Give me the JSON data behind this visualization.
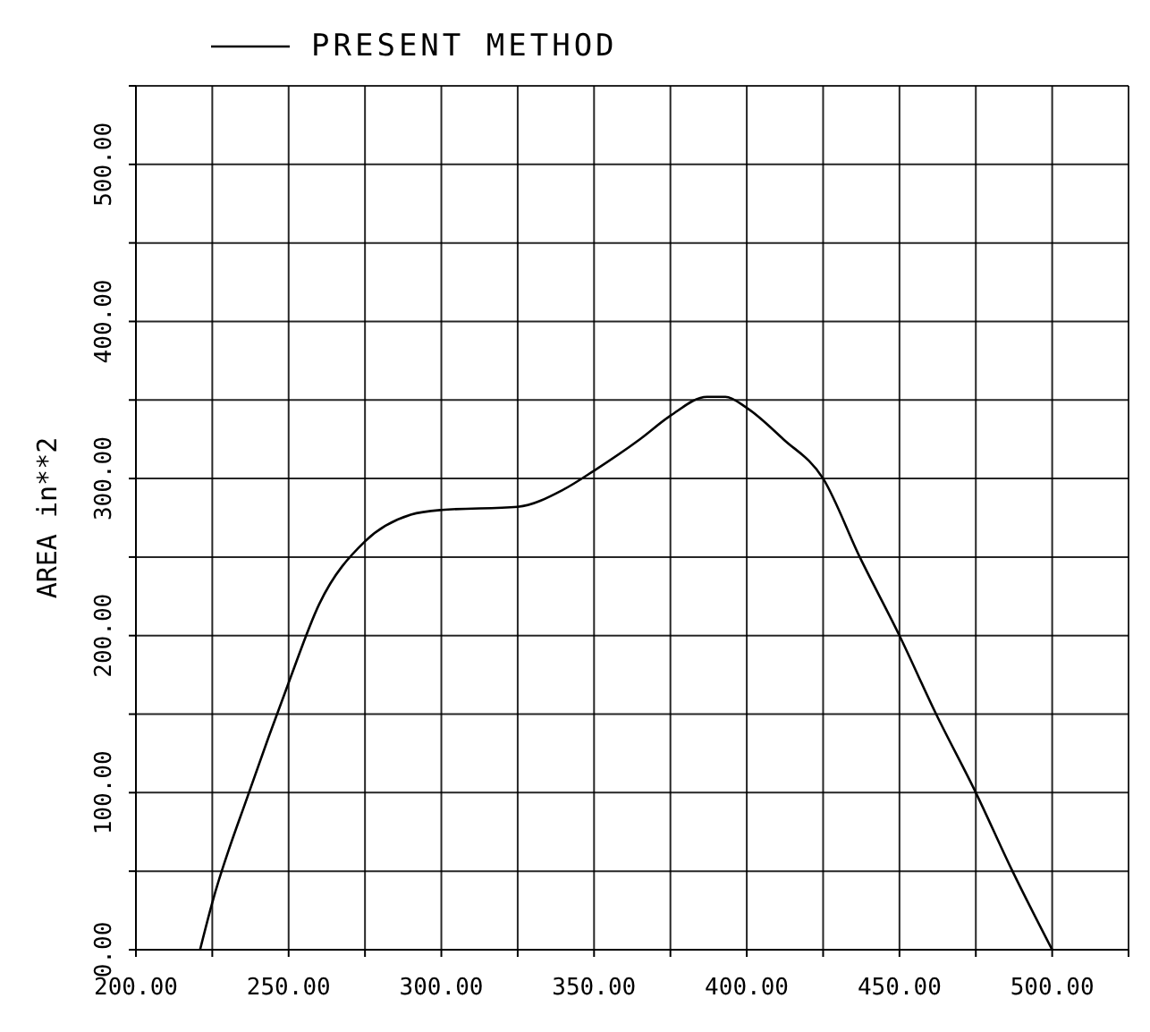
{
  "chart_data": {
    "type": "line",
    "ylabel": "AREA  in**2",
    "series": [
      {
        "name": "PRESENT METHOD",
        "color": "#000000",
        "x": [
          221,
          225,
          237,
          250,
          260,
          275,
          290,
          300,
          325,
          340,
          350,
          365,
          375,
          387,
          393,
          400,
          412,
          425,
          437,
          450,
          462,
          475,
          487,
          500
        ],
        "values": [
          0,
          30,
          100,
          170,
          220,
          260,
          277,
          280,
          282,
          293,
          305,
          325,
          340,
          352,
          352,
          345,
          325,
          300,
          250,
          200,
          150,
          100,
          50,
          0
        ]
      }
    ],
    "xlim": [
      200,
      525
    ],
    "ylim": [
      0,
      550
    ],
    "xticks": [
      {
        "value": 200,
        "label": "200.00"
      },
      {
        "value": 225,
        "label": null
      },
      {
        "value": 250,
        "label": "250.00"
      },
      {
        "value": 275,
        "label": null
      },
      {
        "value": 300,
        "label": "300.00"
      },
      {
        "value": 325,
        "label": null
      },
      {
        "value": 350,
        "label": "350.00"
      },
      {
        "value": 375,
        "label": null
      },
      {
        "value": 400,
        "label": "400.00"
      },
      {
        "value": 425,
        "label": null
      },
      {
        "value": 450,
        "label": "450.00"
      },
      {
        "value": 475,
        "label": null
      },
      {
        "value": 500,
        "label": "500.00"
      },
      {
        "value": 525,
        "label": null
      }
    ],
    "yticks": [
      {
        "value": 0,
        "label": "0.00"
      },
      {
        "value": 50,
        "label": null
      },
      {
        "value": 100,
        "label": "100.00"
      },
      {
        "value": 150,
        "label": null
      },
      {
        "value": 200,
        "label": "200.00"
      },
      {
        "value": 250,
        "label": null
      },
      {
        "value": 300,
        "label": "300.00"
      },
      {
        "value": 350,
        "label": null
      },
      {
        "value": 400,
        "label": "400.00"
      },
      {
        "value": 450,
        "label": null
      },
      {
        "value": 500,
        "label": "500.00"
      },
      {
        "value": 550,
        "label": null
      }
    ],
    "grid": true,
    "legend": "top left",
    "marker": "none",
    "line_style": "solid"
  }
}
